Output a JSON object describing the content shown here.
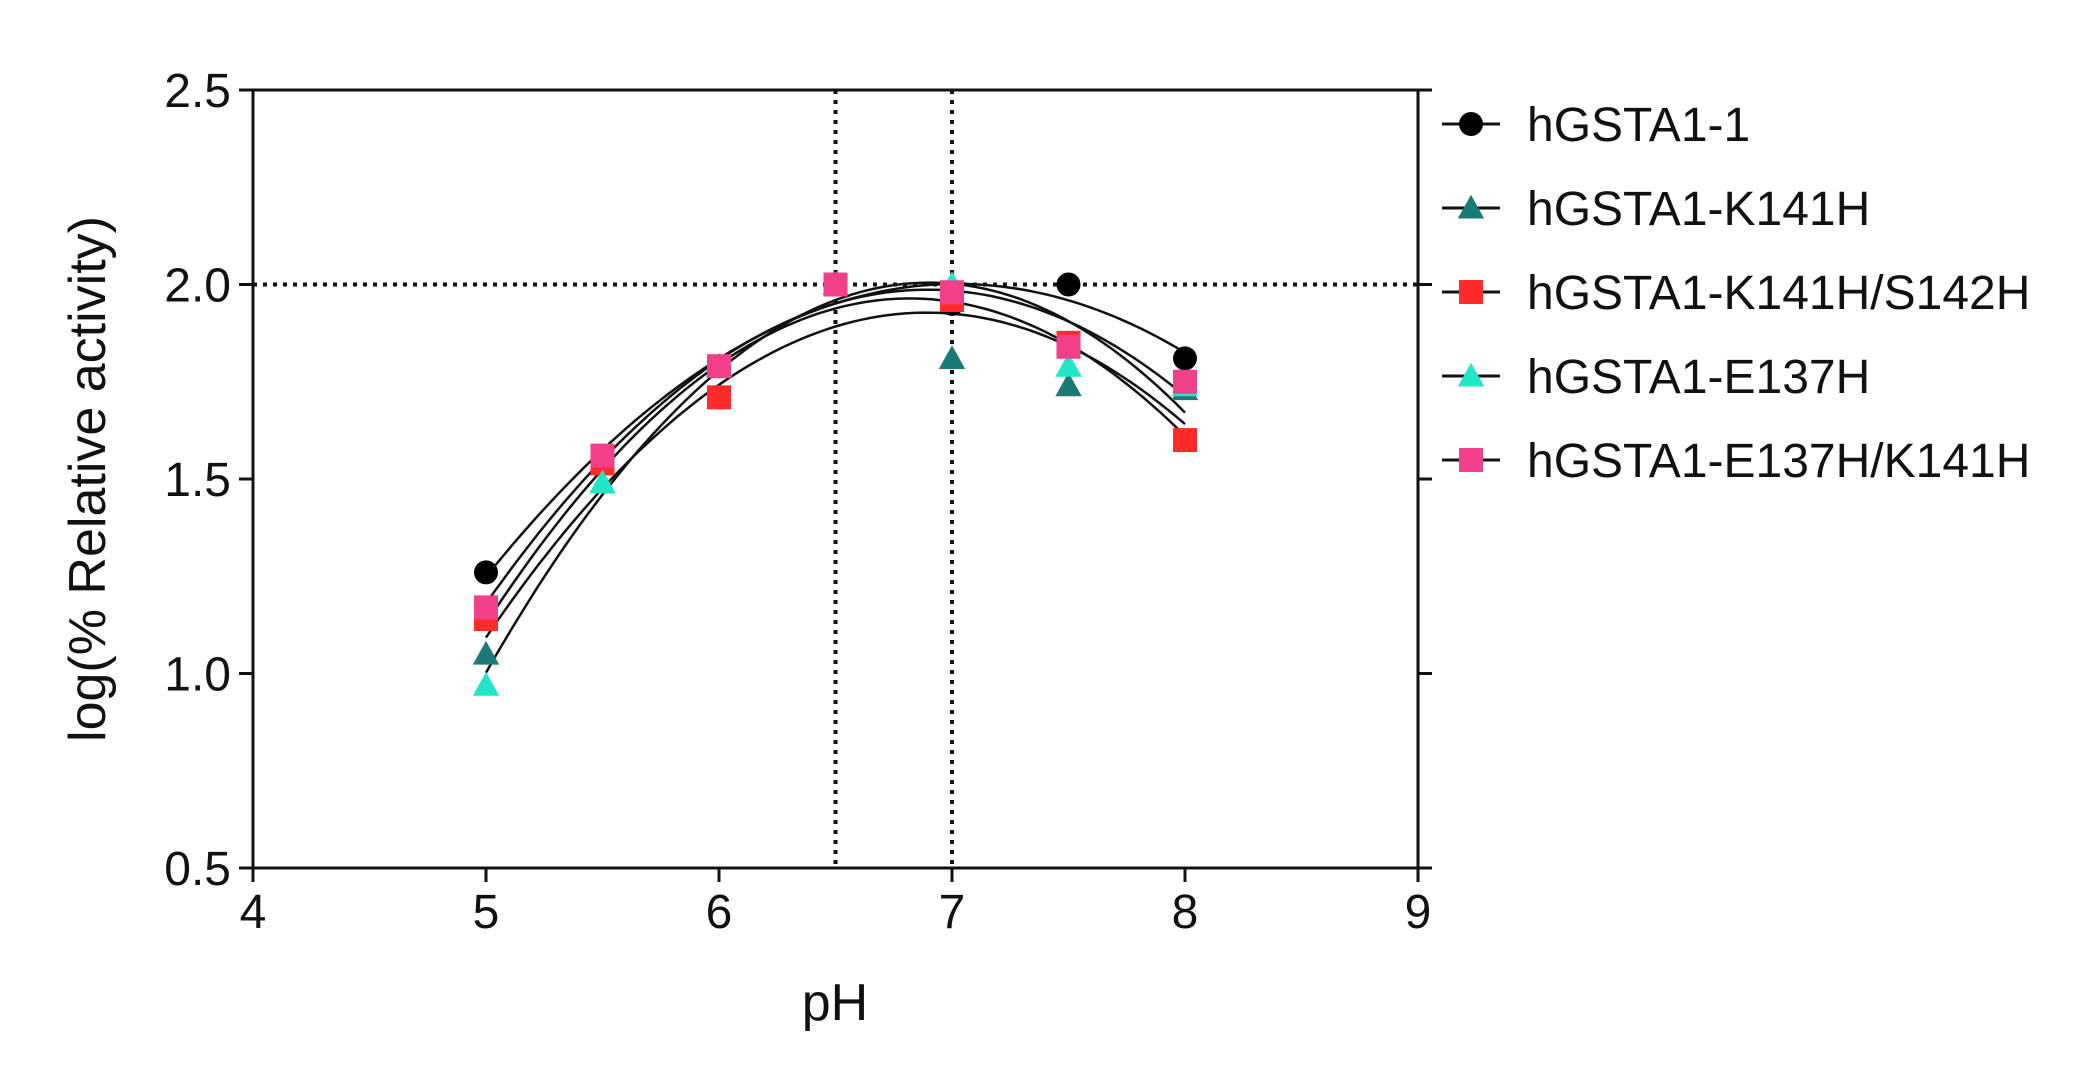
{
  "chart_data": {
    "type": "scatter",
    "title": "",
    "xlabel": "pH",
    "ylabel": "log(% Relative activity)",
    "xlim": [
      4,
      9
    ],
    "ylim": [
      0.5,
      2.5
    ],
    "xticks": [
      "4",
      "5",
      "6",
      "7",
      "8",
      "9"
    ],
    "yticks": [
      "0.5",
      "1.0",
      "1.5",
      "2.0",
      "2.5"
    ],
    "reference_lines": {
      "vertical": [
        6.5,
        7.0
      ],
      "horizontal": [
        2.0
      ]
    },
    "legend_position": "right",
    "series": [
      {
        "name": "hGSTA1-1",
        "marker": "circle",
        "color": "#000000",
        "x": [
          5,
          5.5,
          6,
          6.5,
          7,
          7.5,
          8
        ],
        "y": [
          1.26,
          1.56,
          1.79,
          2.0,
          1.95,
          2.0,
          1.81
        ]
      },
      {
        "name": "hGSTA1-K141H",
        "marker": "triangle",
        "color": "#1a7a78",
        "x": [
          5,
          5.5,
          6,
          6.5,
          7,
          7.5,
          8
        ],
        "y": [
          1.05,
          1.49,
          1.79,
          2.0,
          1.81,
          1.74,
          1.73
        ]
      },
      {
        "name": "hGSTA1-K141H/S142H",
        "marker": "square",
        "color": "#ff2a2a",
        "x": [
          5,
          5.5,
          6,
          6.5,
          7,
          7.5,
          8
        ],
        "y": [
          1.14,
          1.54,
          1.71,
          2.0,
          1.96,
          1.85,
          1.6
        ]
      },
      {
        "name": "hGSTA1-E137H",
        "marker": "triangle",
        "color": "#22e6c8",
        "x": [
          5,
          5.5,
          6,
          6.5,
          7,
          7.5,
          8
        ],
        "y": [
          0.97,
          1.49,
          1.79,
          2.0,
          2.0,
          1.79,
          1.74
        ]
      },
      {
        "name": "hGSTA1-E137H/K141H",
        "marker": "square",
        "color": "#f0408a",
        "x": [
          5,
          5.5,
          6,
          6.5,
          7,
          7.5,
          8
        ],
        "y": [
          1.17,
          1.56,
          1.79,
          2.0,
          1.98,
          1.84,
          1.75
        ]
      }
    ]
  }
}
